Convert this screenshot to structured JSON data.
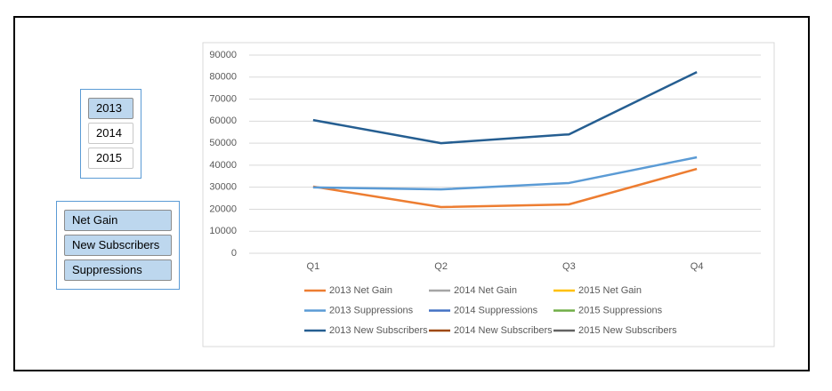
{
  "slicers": [
    {
      "items": [
        {
          "label": "2013",
          "selected": true
        },
        {
          "label": "2014",
          "selected": false
        },
        {
          "label": "2015",
          "selected": false
        }
      ]
    },
    {
      "items": [
        {
          "label": "Net Gain",
          "selected": true
        },
        {
          "label": "New Subscribers",
          "selected": true
        },
        {
          "label": "Suppressions",
          "selected": true
        }
      ]
    }
  ],
  "chart_data": {
    "type": "line",
    "categories": [
      "Q1",
      "Q2",
      "Q3",
      "Q4"
    ],
    "ylim": [
      0,
      90000
    ],
    "yticks": [
      0,
      10000,
      20000,
      30000,
      40000,
      50000,
      60000,
      70000,
      80000,
      90000
    ],
    "grid": true,
    "legend": "bottom",
    "series": [
      {
        "name": "2013 Net Gain",
        "color": "#ed7d31",
        "values": [
          30300,
          21000,
          22200,
          38300
        ]
      },
      {
        "name": "2014 Net Gain",
        "color": "#a5a5a5",
        "values": [
          null,
          null,
          null,
          null
        ]
      },
      {
        "name": "2015 Net Gain",
        "color": "#ffc000",
        "values": [
          null,
          null,
          null,
          null
        ]
      },
      {
        "name": "2013 Suppressions",
        "color": "#5b9bd5",
        "values": [
          29900,
          29000,
          31900,
          43600
        ]
      },
      {
        "name": "2014 Suppressions",
        "color": "#4472c4",
        "values": [
          null,
          null,
          null,
          null
        ]
      },
      {
        "name": "2015 Suppressions",
        "color": "#70ad47",
        "values": [
          null,
          null,
          null,
          null
        ]
      },
      {
        "name": "2013 New Subscribers",
        "color": "#255e91",
        "values": [
          60500,
          50000,
          54000,
          82300
        ]
      },
      {
        "name": "2014 New Subscribers",
        "color": "#9e480e",
        "values": [
          null,
          null,
          null,
          null
        ]
      },
      {
        "name": "2015 New Subscribers",
        "color": "#636363",
        "values": [
          null,
          null,
          null,
          null
        ]
      }
    ]
  }
}
